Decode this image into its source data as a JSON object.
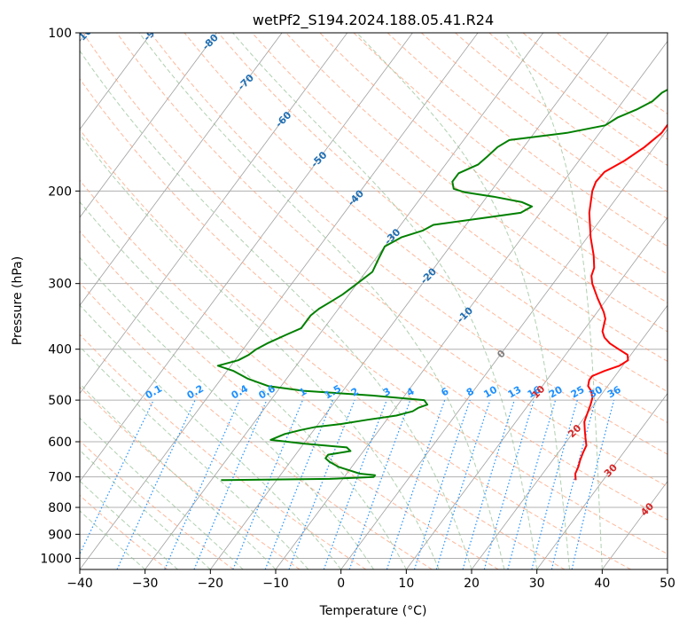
{
  "chart_data": {
    "type": "line",
    "title": "wetPf2_S194.2024.188.05.41.R24",
    "xlabel": "Temperature (°C)",
    "ylabel": "Pressure (hPa)",
    "xlim": [
      -40,
      50
    ],
    "ylim": [
      1050,
      100
    ],
    "yscale": "log",
    "grid": true,
    "x_ticks": [
      "−40",
      "−30",
      "−20",
      "−10",
      "0",
      "10",
      "20",
      "30",
      "40",
      "50"
    ],
    "y_ticks": [
      "100",
      "200",
      "300",
      "400",
      "500",
      "600",
      "700",
      "800",
      "900",
      "1000"
    ],
    "colors": {
      "temperature": "#ff0000",
      "dewpoint": "#008000",
      "isotherms": "#a0a0a0",
      "dry_adiabats": "#ffa07a",
      "moist_adiabats": "#8fbc8f",
      "mixing_ratio": "#1e90ff",
      "isotherm_labels": "#1f6fb4",
      "adiabat_labels": "#d62728"
    },
    "isotherm_labels": [
      "-100",
      "-90",
      "-80",
      "-70",
      "-60",
      "-50",
      "-40",
      "-30",
      "-20",
      "-10",
      "0",
      "10",
      "20",
      "30",
      "40"
    ],
    "mixing_ratio_labels": [
      "0.1",
      "0.2",
      "0.4",
      "0.6",
      "1",
      "1.5",
      "2",
      "3",
      "4",
      "6",
      "8",
      "10",
      "13",
      "16",
      "20",
      "25",
      "30",
      "36"
    ],
    "mixing_ratio_values": [
      0.1,
      0.2,
      0.4,
      0.6,
      1,
      1.5,
      2,
      3,
      4,
      6,
      8,
      10,
      13,
      16,
      20,
      25,
      30,
      36
    ],
    "series": [
      {
        "key": "temperature",
        "values": [
          [
            25.8,
            710
          ],
          [
            25.0,
            690
          ],
          [
            24.7,
            670
          ],
          [
            24.2,
            650
          ],
          [
            23.8,
            630
          ],
          [
            23.5,
            610
          ],
          [
            22.5,
            590
          ],
          [
            21.5,
            570
          ],
          [
            20.5,
            550
          ],
          [
            20.0,
            530
          ],
          [
            19.5,
            510
          ],
          [
            19.0,
            495
          ],
          [
            18.0,
            480
          ],
          [
            17.0,
            470
          ],
          [
            16.5,
            458
          ],
          [
            16.5,
            450
          ],
          [
            17.8,
            440
          ],
          [
            19.5,
            430
          ],
          [
            20.2,
            420
          ],
          [
            19.5,
            410
          ],
          [
            17.5,
            400
          ],
          [
            15.5,
            390
          ],
          [
            14.0,
            380
          ],
          [
            13.0,
            370
          ],
          [
            12.5,
            360
          ],
          [
            12.0,
            350
          ],
          [
            11.0,
            340
          ],
          [
            8.5,
            320
          ],
          [
            6.0,
            300
          ],
          [
            5.0,
            290
          ],
          [
            4.5,
            280
          ],
          [
            3.0,
            265
          ],
          [
            0.5,
            245
          ],
          [
            -2.5,
            220
          ],
          [
            -4.5,
            200
          ],
          [
            -5.0,
            192
          ],
          [
            -4.8,
            184
          ],
          [
            -3.0,
            175
          ],
          [
            -1.5,
            165
          ],
          [
            -0.5,
            155
          ],
          [
            -0.5,
            145
          ],
          [
            -0.5,
            135
          ],
          [
            -0.5,
            125
          ],
          [
            -0.5,
            115
          ],
          [
            -0.5,
            108
          ],
          [
            0.0,
            103
          ],
          [
            1.0,
            100
          ]
        ]
      },
      {
        "key": "dewpoint",
        "values": [
          [
            -28.5,
            710
          ],
          [
            -12.0,
            706
          ],
          [
            -5.5,
            700
          ],
          [
            -5.5,
            695
          ],
          [
            -8.0,
            690
          ],
          [
            -10.0,
            680
          ],
          [
            -12.0,
            670
          ],
          [
            -14.0,
            655
          ],
          [
            -15.0,
            645
          ],
          [
            -15.0,
            635
          ],
          [
            -12.0,
            625
          ],
          [
            -13.0,
            615
          ],
          [
            -20.0,
            605
          ],
          [
            -25.5,
            595
          ],
          [
            -24.0,
            580
          ],
          [
            -22.0,
            570
          ],
          [
            -20.0,
            562
          ],
          [
            -16.5,
            555
          ],
          [
            -13.0,
            545
          ],
          [
            -9.0,
            535
          ],
          [
            -7.0,
            525
          ],
          [
            -6.5,
            517
          ],
          [
            -5.5,
            510
          ],
          [
            -6.5,
            500
          ],
          [
            -15.0,
            490
          ],
          [
            -26.0,
            480
          ],
          [
            -32.0,
            470
          ],
          [
            -36.0,
            455
          ],
          [
            -39.0,
            440
          ],
          [
            -42.0,
            430
          ],
          [
            -39.5,
            420
          ],
          [
            -38.5,
            410
          ],
          [
            -38.0,
            400
          ],
          [
            -37.0,
            390
          ],
          [
            -35.0,
            375
          ],
          [
            -33.5,
            365
          ],
          [
            -33.5,
            355
          ],
          [
            -33.5,
            345
          ],
          [
            -33.0,
            335
          ],
          [
            -32.0,
            325
          ],
          [
            -31.0,
            315
          ],
          [
            -30.0,
            300
          ],
          [
            -29.0,
            285
          ],
          [
            -29.5,
            270
          ],
          [
            -30.0,
            255
          ],
          [
            -28.5,
            245
          ],
          [
            -26.0,
            238
          ],
          [
            -25.0,
            232
          ],
          [
            -18.0,
            225
          ],
          [
            -13.0,
            220
          ],
          [
            -12.0,
            214
          ],
          [
            -14.0,
            210
          ],
          [
            -19.0,
            205
          ],
          [
            -24.0,
            201
          ],
          [
            -26.0,
            198
          ],
          [
            -27.0,
            192
          ],
          [
            -27.0,
            185
          ],
          [
            -25.0,
            178
          ],
          [
            -24.5,
            172
          ],
          [
            -24.0,
            165
          ],
          [
            -23.0,
            160
          ],
          [
            -15.0,
            155
          ],
          [
            -10.0,
            150
          ],
          [
            -9.0,
            145
          ],
          [
            -7.0,
            140
          ],
          [
            -5.5,
            135
          ],
          [
            -5.0,
            130
          ],
          [
            -3.5,
            125
          ],
          [
            -2.5,
            120
          ],
          [
            -1.5,
            113
          ],
          [
            0.0,
            107
          ],
          [
            1.0,
            102
          ],
          [
            1.5,
            100
          ]
        ]
      }
    ]
  }
}
